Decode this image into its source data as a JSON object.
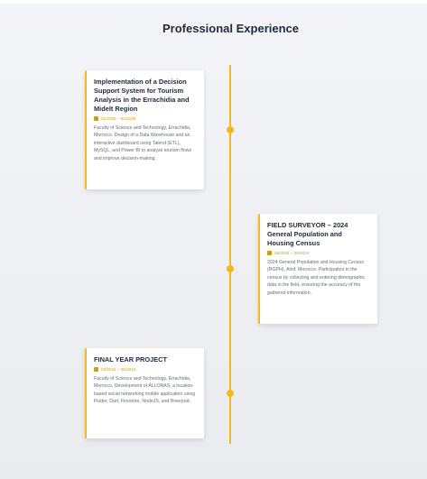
{
  "section": {
    "title": "Professional Experience"
  },
  "accent_color": "#f2b824",
  "experiences": [
    {
      "title": "Implementation of a Decision Support System for Tourism Analysis in the Errachidia and Midelt Region",
      "date": "01/2025 – 02/2025",
      "description": "Faculty of Science and Technology, Errachidia, Morocco. Design of a Data Warehouse and an interactive dashboard using Talend (ETL), MySQL, and Power BI to analyze tourism flows and improve decision-making."
    },
    {
      "title": "FIELD SURVEYOR – 2024 General Population and Housing Census",
      "date": "08/2024 – 09/2024",
      "description": "2024 General Population and Housing Census (RGPH), Alnif, Morocco. Participation in the census by collecting and entering demographic data in the field, ensuring the accuracy of the gathered information."
    },
    {
      "title": "FINAL YEAR PROJECT",
      "date": "02/2024 – 06/2024",
      "description": "Faculty of Science and Technology, Errachidia, Morocco. Development of ALLONAS, a location-based social networking mobile application using Flutter, Dart, Firestore, NodeJS, and Riverpod."
    }
  ]
}
